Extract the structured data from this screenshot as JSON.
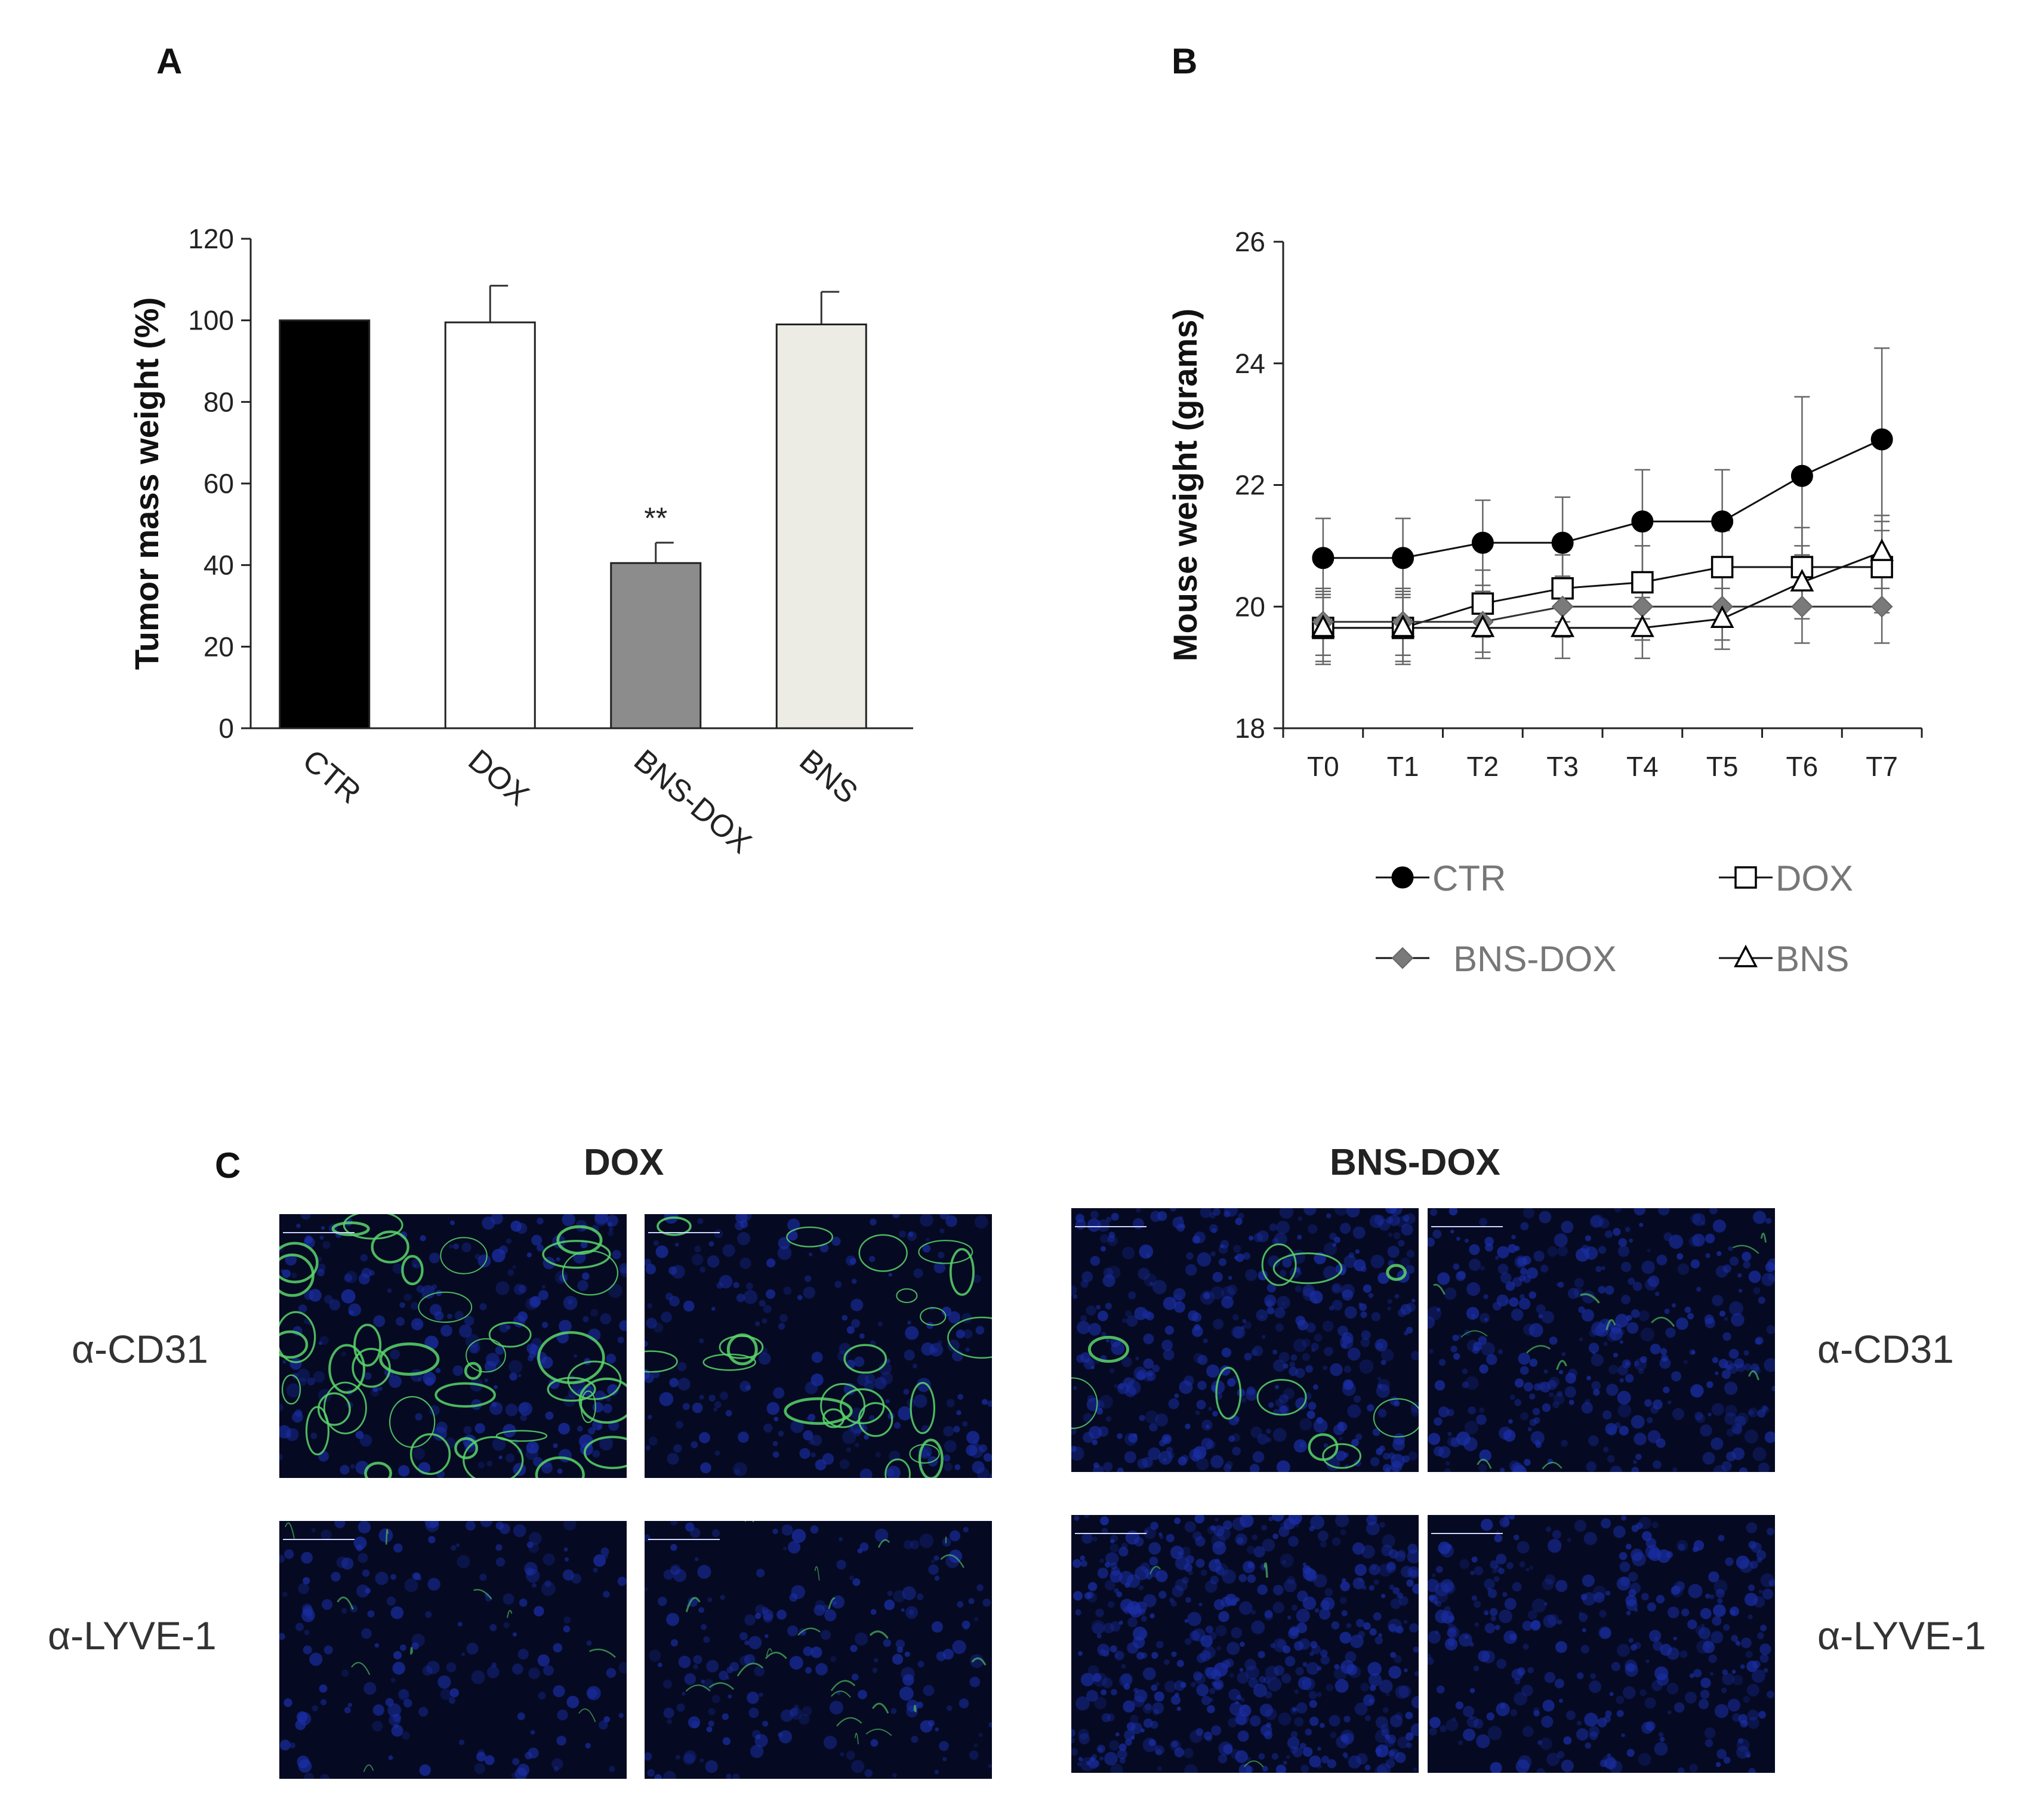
{
  "panels": {
    "a": "A",
    "b": "B",
    "c": "C"
  },
  "chart_data": [
    {
      "id": "A",
      "type": "bar",
      "ylabel": "Tumor mass weight (%)",
      "xlabel": "",
      "ylim": [
        0,
        120
      ],
      "yticks": [
        0,
        20,
        40,
        60,
        80,
        100,
        120
      ],
      "categories": [
        "CTR",
        "DOX",
        "BNS-DOX",
        "BNS"
      ],
      "values": [
        100,
        99.5,
        40.5,
        99
      ],
      "errors": [
        0,
        9,
        5,
        8
      ],
      "bar_colors": [
        "#000000",
        "#ffffff",
        "#8c8c8c",
        "#ecebe4"
      ],
      "annotations": [
        {
          "category": "BNS-DOX",
          "text": "**"
        }
      ],
      "grid": false
    },
    {
      "id": "B",
      "type": "line",
      "ylabel": "Mouse weight (grams)",
      "xlabel": "",
      "ylim": [
        18,
        26
      ],
      "yticks": [
        18,
        20,
        22,
        24,
        26
      ],
      "x": [
        "T0",
        "T1",
        "T2",
        "T3",
        "T4",
        "T5",
        "T6",
        "T7"
      ],
      "series": [
        {
          "name": "CTR",
          "marker": "filled-circle",
          "color": "#000000",
          "values": [
            20.8,
            20.8,
            21.05,
            21.05,
            21.4,
            21.4,
            22.15,
            22.75
          ],
          "errors": [
            0.65,
            0.65,
            0.7,
            0.75,
            0.85,
            0.85,
            1.3,
            1.5
          ]
        },
        {
          "name": "DOX",
          "marker": "open-square",
          "color": "#000000",
          "values": [
            19.65,
            19.65,
            20.05,
            20.3,
            20.4,
            20.65,
            20.65,
            20.65
          ],
          "errors": [
            0.6,
            0.6,
            0.55,
            0.55,
            0.6,
            0.6,
            0.65,
            0.75
          ]
        },
        {
          "name": "BNS-DOX",
          "marker": "gray-diamond",
          "color": "#808080",
          "values": [
            19.75,
            19.75,
            19.75,
            20.0,
            20.0,
            20.0,
            20.0,
            20.0
          ],
          "errors": [
            0.55,
            0.55,
            0.5,
            0.5,
            0.55,
            0.55,
            0.6,
            0.6
          ]
        },
        {
          "name": "BNS",
          "marker": "open-triangle",
          "color": "#000000",
          "values": [
            19.65,
            19.65,
            19.65,
            19.65,
            19.65,
            19.8,
            20.4,
            20.9
          ],
          "errors": [
            0.55,
            0.55,
            0.5,
            0.5,
            0.5,
            0.5,
            0.6,
            0.6
          ]
        }
      ],
      "legend_position": "bottom",
      "grid": false
    }
  ],
  "panel_c": {
    "columns": [
      "DOX",
      "BNS-DOX"
    ],
    "rows": [
      "α-CD31",
      "α-LYVE-1"
    ],
    "row_labels_left": [
      "α-CD31",
      "α-LYVE-1"
    ],
    "row_labels_right": [
      "α-CD31",
      "α-LYVE-1"
    ],
    "stain_colors": {
      "nuclei": "#1b2fa8",
      "vessel": "#5bd66a",
      "background": "#050a22"
    }
  }
}
